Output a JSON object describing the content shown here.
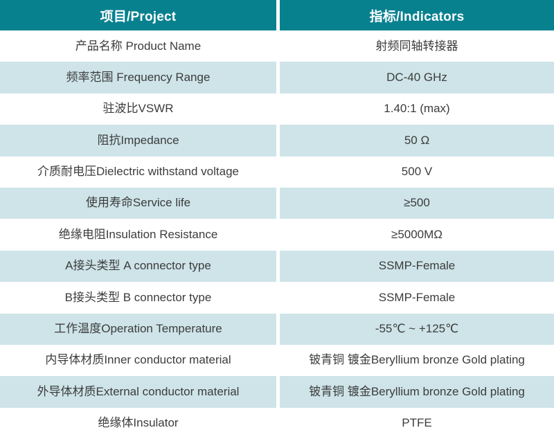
{
  "table": {
    "header": {
      "project": "项目/Project",
      "indicators": "指标/Indicators"
    },
    "rows": [
      {
        "label": "产品名称 Product Name",
        "value": "射频同轴转接器"
      },
      {
        "label": "频率范围 Frequency Range",
        "value": "DC-40 GHz"
      },
      {
        "label": "驻波比VSWR",
        "value": "1.40:1 (max)"
      },
      {
        "label": "阻抗Impedance",
        "value": "50 Ω"
      },
      {
        "label": "介质耐电压Dielectric withstand voltage",
        "value": "500 V"
      },
      {
        "label": "使用寿命Service life",
        "value": "≥500"
      },
      {
        "label": "绝缘电阻Insulation Resistance",
        "value": "≥5000MΩ"
      },
      {
        "label": "A接头类型 A connector type",
        "value": "SSMP-Female"
      },
      {
        "label": "B接头类型 B connector type",
        "value": "SSMP-Female"
      },
      {
        "label": "工作温度Operation Temperature",
        "value": "-55℃ ~ +125℃"
      },
      {
        "label": "内导体材质Inner conductor material",
        "value": "铍青铜 镀金Beryllium bronze Gold plating"
      },
      {
        "label": "外导体材质External conductor material",
        "value": "铍青铜 镀金Beryllium bronze Gold plating"
      },
      {
        "label": "绝缘体Insulator",
        "value": "PTFE"
      }
    ]
  },
  "colors": {
    "header_bg": "#08818f",
    "header_text": "#ffffff",
    "row_bg": "#ffffff",
    "row_alt_bg": "#cee4e9",
    "text": "#3c3c3c",
    "divider": "#ffffff"
  }
}
